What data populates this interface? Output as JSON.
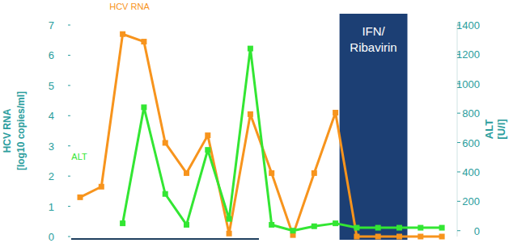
{
  "chart_data": {
    "type": "line",
    "categories": [
      null,
      null,
      null,
      null,
      null,
      null,
      null,
      null,
      null,
      null,
      null,
      null,
      null,
      null,
      null,
      null,
      null,
      null
    ],
    "series": [
      {
        "name": "HCV RNA",
        "color": "#f7941d",
        "marker": "square",
        "values": [
          1.3,
          1.65,
          6.7,
          6.45,
          3.1,
          2.1,
          3.35,
          0.1,
          4.05,
          2.1,
          0.05,
          2.1,
          4.1,
          0,
          0,
          0,
          0,
          0
        ]
      },
      {
        "name": "ALT",
        "color": "#33e633",
        "marker": "square",
        "axis": "y2",
        "values": [
          null,
          null,
          50,
          840,
          250,
          40,
          550,
          80,
          1240,
          40,
          0,
          30,
          50,
          20,
          20,
          20,
          20,
          20
        ]
      }
    ],
    "y_label": [
      "HCV RNA",
      "[log10 copies/ml]"
    ],
    "y2_label": [
      "ALT",
      "[U/l]"
    ],
    "ylim": [
      0,
      7
    ],
    "yticks": [
      0,
      1,
      2,
      3,
      4,
      5,
      6,
      7
    ],
    "y2lim": [
      -40,
      1400
    ],
    "y2ticks": [
      0,
      200,
      400,
      600,
      800,
      1000,
      1200,
      1400
    ],
    "annotations": [
      "IFN/",
      "Ribavirin"
    ],
    "grid": false
  }
}
